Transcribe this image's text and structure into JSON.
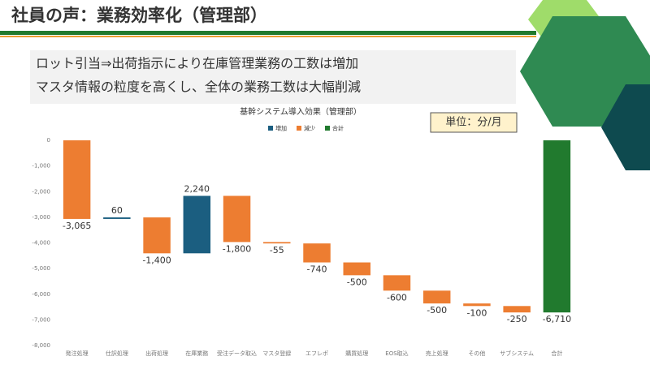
{
  "slide_title": "社員の声：業務効率化（管理部）",
  "notes": [
    "ロット引当⇒出荷指示により在庫管理業務の工数は増加",
    "マスタ情報の粒度を高くし、全体の業務工数は大幅削減"
  ],
  "unit": "単位：分/月",
  "chart_data": {
    "type": "waterfall",
    "title": "基幹システム導入効果（管理部）",
    "categories": [
      "発注処理",
      "仕訳処理",
      "出荷処理",
      "在庫業務",
      "受注データ取込",
      "マスタ登録",
      "エフレポ",
      "購買処理",
      "EOS取込",
      "売上処理",
      "その他",
      "サブシステム",
      "合計"
    ],
    "values": [
      -3065,
      60,
      -1400,
      2240,
      -1800,
      -55,
      -740,
      -500,
      -600,
      -500,
      -100,
      -250,
      -6710
    ],
    "value_labels": [
      "-3,065",
      "60",
      "-1,400",
      "2,240",
      "-1,800",
      "-55",
      "-740",
      "-500",
      "-600",
      "-500",
      "-100",
      "-250",
      "-6,710"
    ],
    "legend": [
      {
        "name": "増加",
        "color": "#1b5e80"
      },
      {
        "name": "減少",
        "color": "#ed7d31"
      },
      {
        "name": "合計",
        "color": "#217a2e"
      }
    ],
    "last_is_total": true,
    "ylim": [
      -8000,
      0
    ],
    "yticks": [
      0,
      {
        "value": -1000,
        "label": "-1,000"
      },
      {
        "value": -2000,
        "label": "-2,000"
      },
      {
        "value": -3000,
        "label": "-3,000"
      },
      {
        "value": -4000,
        "label": "-4,000"
      },
      {
        "value": -5000,
        "label": "-5,000"
      },
      {
        "value": -6000,
        "label": "-6,000"
      },
      {
        "value": -7000,
        "label": "-7,000"
      },
      {
        "value": -8000,
        "label": "-8,000"
      }
    ]
  }
}
